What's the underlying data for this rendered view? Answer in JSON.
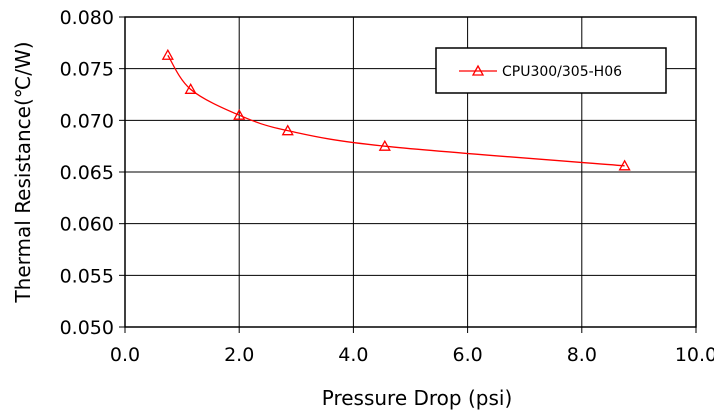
{
  "chart_data": {
    "type": "line",
    "xlabel": "Pressure Drop (psi)",
    "ylabel": "Thermal Resistance(℃/W)",
    "xlim": [
      0.0,
      10.0
    ],
    "ylim": [
      0.05,
      0.08
    ],
    "xticks": [
      "0.0",
      "2.0",
      "4.0",
      "6.0",
      "8.0",
      "10.0"
    ],
    "yticks": [
      "0.050",
      "0.055",
      "0.060",
      "0.065",
      "0.070",
      "0.075",
      "0.080"
    ],
    "grid": true,
    "legend_position": "top-right",
    "series": [
      {
        "name": "CPU300/305-H06",
        "color": "#ff0000",
        "marker": "triangle-open",
        "smooth": true,
        "x": [
          0.75,
          1.15,
          2.0,
          2.85,
          4.55,
          8.75
        ],
        "y": [
          0.0763,
          0.073,
          0.0705,
          0.069,
          0.0675,
          0.0656
        ]
      }
    ]
  }
}
